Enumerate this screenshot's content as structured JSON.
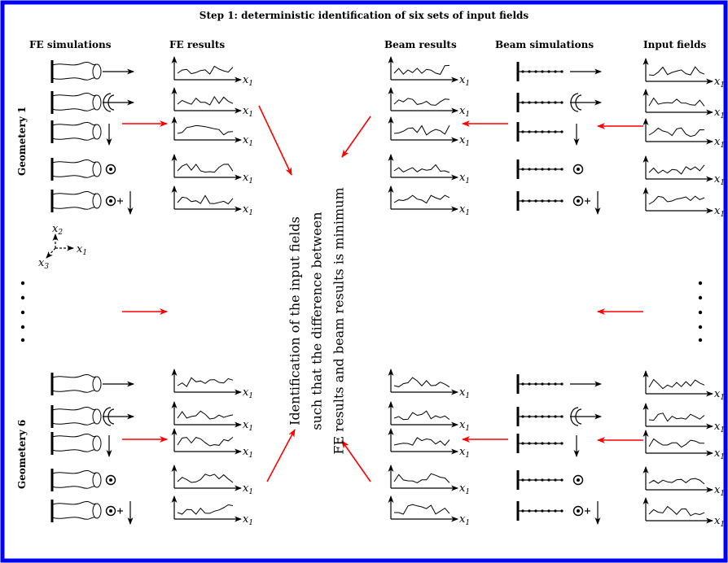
{
  "title": "Step 1: deterministic identification of six sets of input fields",
  "headers": {
    "fe_simulations": "FE  simulations",
    "fe_results": "FE  results",
    "beam_results": "Beam results",
    "beam_simulations": "Beam simulations",
    "input_fields": "Input fields"
  },
  "geometry_labels": [
    "Geometery 1",
    "Geometery 6"
  ],
  "center_lines": [
    "Identification of the input fields",
    "such that the difference between",
    "FE results and beam results is minimum"
  ],
  "axis_label": "x",
  "axis_subscript": "1",
  "triad": {
    "x1": "x",
    "x1_sub": "1",
    "x2": "x",
    "x2_sub": "2",
    "x3": "x",
    "x3_sub": "3"
  },
  "colors": {
    "frame": "#0000ff",
    "arrow": "#ff0000",
    "ink": "#000000"
  }
}
